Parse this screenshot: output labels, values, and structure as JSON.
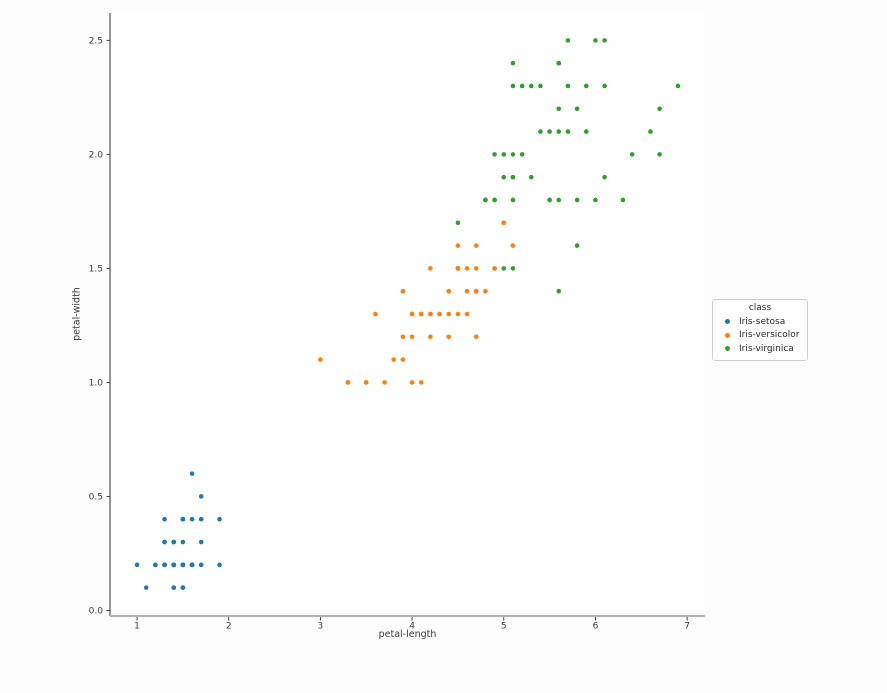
{
  "page": {
    "background_color": "#fdfdfd",
    "axes_background_color": "#ffffff",
    "spine_left_color": "#2e2e2e",
    "spine_bottom_color": "#b0b0b0",
    "tick_color": "#2e2e2e",
    "tick_label_color": "#3a3a3a",
    "legend_border_color": "#cccccc"
  },
  "chart_data": {
    "type": "scatter",
    "title": "",
    "xlabel": "petal-length",
    "ylabel": "petal-width",
    "xlim": [
      0.705,
      7.195
    ],
    "ylim": [
      -0.02,
      2.62
    ],
    "x_ticks": [
      1,
      2,
      3,
      4,
      5,
      6,
      7
    ],
    "x_tick_labels": [
      "1",
      "2",
      "3",
      "4",
      "5",
      "6",
      "7"
    ],
    "y_ticks": [
      0.0,
      0.5,
      1.0,
      1.5,
      2.0,
      2.5
    ],
    "y_tick_labels": [
      "0.0",
      "0.5",
      "1.0",
      "1.5",
      "2.0",
      "2.5"
    ],
    "grid": false,
    "legend": {
      "title": "class",
      "position": "center-right-outside"
    },
    "series": [
      {
        "name": "Iris-setosa",
        "color": "#1f77b4",
        "points": [
          [
            1.4,
            0.2
          ],
          [
            1.4,
            0.2
          ],
          [
            1.3,
            0.2
          ],
          [
            1.5,
            0.2
          ],
          [
            1.4,
            0.2
          ],
          [
            1.7,
            0.4
          ],
          [
            1.4,
            0.3
          ],
          [
            1.5,
            0.2
          ],
          [
            1.4,
            0.2
          ],
          [
            1.5,
            0.1
          ],
          [
            1.5,
            0.2
          ],
          [
            1.6,
            0.2
          ],
          [
            1.4,
            0.1
          ],
          [
            1.1,
            0.1
          ],
          [
            1.2,
            0.2
          ],
          [
            1.5,
            0.4
          ],
          [
            1.3,
            0.4
          ],
          [
            1.4,
            0.3
          ],
          [
            1.7,
            0.3
          ],
          [
            1.5,
            0.3
          ],
          [
            1.7,
            0.2
          ],
          [
            1.5,
            0.4
          ],
          [
            1.0,
            0.2
          ],
          [
            1.7,
            0.5
          ],
          [
            1.9,
            0.2
          ],
          [
            1.6,
            0.2
          ],
          [
            1.6,
            0.4
          ],
          [
            1.5,
            0.2
          ],
          [
            1.4,
            0.2
          ],
          [
            1.6,
            0.2
          ],
          [
            1.6,
            0.2
          ],
          [
            1.5,
            0.4
          ],
          [
            1.5,
            0.1
          ],
          [
            1.4,
            0.2
          ],
          [
            1.5,
            0.2
          ],
          [
            1.2,
            0.2
          ],
          [
            1.3,
            0.2
          ],
          [
            1.4,
            0.1
          ],
          [
            1.3,
            0.2
          ],
          [
            1.5,
            0.2
          ],
          [
            1.3,
            0.3
          ],
          [
            1.3,
            0.3
          ],
          [
            1.3,
            0.2
          ],
          [
            1.6,
            0.6
          ],
          [
            1.9,
            0.4
          ],
          [
            1.4,
            0.3
          ],
          [
            1.6,
            0.2
          ],
          [
            1.4,
            0.2
          ],
          [
            1.5,
            0.2
          ],
          [
            1.4,
            0.2
          ]
        ]
      },
      {
        "name": "Iris-versicolor",
        "color": "#ff7f0e",
        "points": [
          [
            4.7,
            1.4
          ],
          [
            4.5,
            1.5
          ],
          [
            4.9,
            1.5
          ],
          [
            4.0,
            1.3
          ],
          [
            4.6,
            1.5
          ],
          [
            4.5,
            1.3
          ],
          [
            4.7,
            1.6
          ],
          [
            3.3,
            1.0
          ],
          [
            4.6,
            1.3
          ],
          [
            3.9,
            1.4
          ],
          [
            3.5,
            1.0
          ],
          [
            4.2,
            1.5
          ],
          [
            4.0,
            1.0
          ],
          [
            4.7,
            1.4
          ],
          [
            3.6,
            1.3
          ],
          [
            4.4,
            1.4
          ],
          [
            4.5,
            1.5
          ],
          [
            4.1,
            1.0
          ],
          [
            4.5,
            1.5
          ],
          [
            3.9,
            1.1
          ],
          [
            4.8,
            1.8
          ],
          [
            4.0,
            1.3
          ],
          [
            4.9,
            1.5
          ],
          [
            4.7,
            1.2
          ],
          [
            4.3,
            1.3
          ],
          [
            4.4,
            1.4
          ],
          [
            4.8,
            1.4
          ],
          [
            5.0,
            1.7
          ],
          [
            4.5,
            1.5
          ],
          [
            3.5,
            1.0
          ],
          [
            3.8,
            1.1
          ],
          [
            3.7,
            1.0
          ],
          [
            3.9,
            1.2
          ],
          [
            5.1,
            1.6
          ],
          [
            4.5,
            1.5
          ],
          [
            4.5,
            1.6
          ],
          [
            4.7,
            1.5
          ],
          [
            4.4,
            1.3
          ],
          [
            4.1,
            1.3
          ],
          [
            4.0,
            1.3
          ],
          [
            4.4,
            1.2
          ],
          [
            4.6,
            1.4
          ],
          [
            4.0,
            1.2
          ],
          [
            3.3,
            1.0
          ],
          [
            4.2,
            1.3
          ],
          [
            4.2,
            1.2
          ],
          [
            4.2,
            1.3
          ],
          [
            4.3,
            1.3
          ],
          [
            3.0,
            1.1
          ],
          [
            4.1,
            1.3
          ]
        ]
      },
      {
        "name": "Iris-virginica",
        "color": "#2ca02c",
        "points": [
          [
            6.0,
            2.5
          ],
          [
            5.1,
            1.9
          ],
          [
            5.9,
            2.1
          ],
          [
            5.6,
            1.8
          ],
          [
            5.8,
            2.2
          ],
          [
            6.6,
            2.1
          ],
          [
            4.5,
            1.7
          ],
          [
            6.3,
            1.8
          ],
          [
            5.8,
            1.8
          ],
          [
            6.1,
            2.5
          ],
          [
            5.1,
            2.0
          ],
          [
            5.3,
            1.9
          ],
          [
            5.5,
            2.1
          ],
          [
            5.0,
            2.0
          ],
          [
            5.1,
            2.4
          ],
          [
            5.3,
            2.3
          ],
          [
            5.5,
            1.8
          ],
          [
            6.7,
            2.2
          ],
          [
            6.9,
            2.3
          ],
          [
            5.0,
            1.5
          ],
          [
            5.7,
            2.3
          ],
          [
            4.9,
            2.0
          ],
          [
            6.7,
            2.0
          ],
          [
            4.9,
            1.8
          ],
          [
            5.7,
            2.1
          ],
          [
            6.0,
            1.8
          ],
          [
            4.8,
            1.8
          ],
          [
            4.9,
            1.8
          ],
          [
            5.6,
            2.1
          ],
          [
            5.8,
            1.6
          ],
          [
            6.1,
            1.9
          ],
          [
            6.4,
            2.0
          ],
          [
            5.6,
            2.2
          ],
          [
            5.1,
            1.5
          ],
          [
            5.6,
            1.4
          ],
          [
            6.1,
            2.3
          ],
          [
            5.6,
            2.4
          ],
          [
            5.5,
            1.8
          ],
          [
            4.8,
            1.8
          ],
          [
            5.4,
            2.1
          ],
          [
            5.6,
            2.4
          ],
          [
            5.1,
            2.3
          ],
          [
            5.1,
            1.9
          ],
          [
            5.9,
            2.3
          ],
          [
            5.7,
            2.5
          ],
          [
            5.2,
            2.3
          ],
          [
            5.0,
            1.9
          ],
          [
            5.2,
            2.0
          ],
          [
            5.4,
            2.3
          ],
          [
            5.1,
            1.8
          ]
        ]
      }
    ]
  }
}
